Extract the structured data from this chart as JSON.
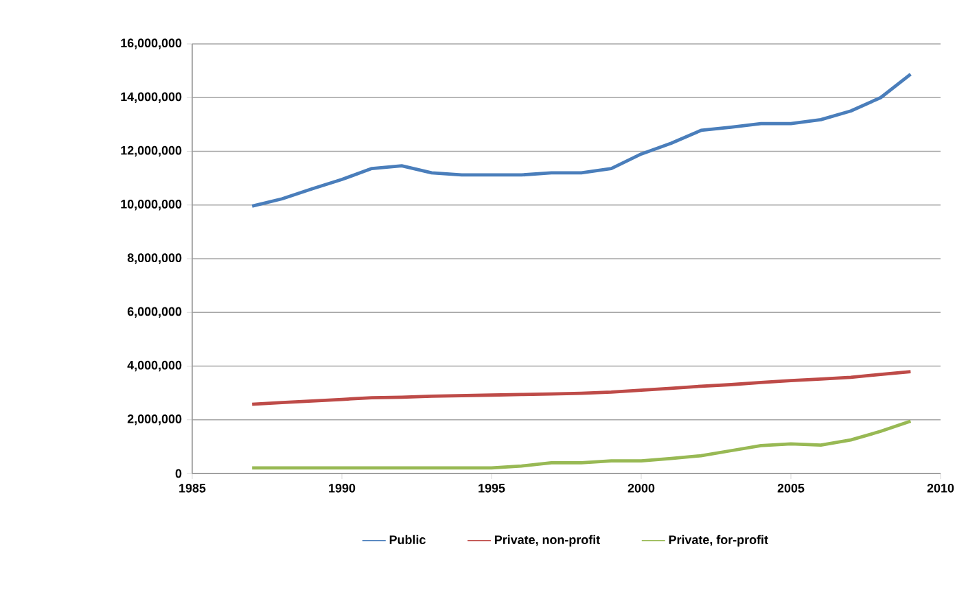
{
  "chart_data": {
    "type": "line",
    "x": [
      1987,
      1988,
      1989,
      1990,
      1991,
      1992,
      1993,
      1994,
      1995,
      1996,
      1997,
      1998,
      1999,
      2000,
      2001,
      2002,
      2003,
      2004,
      2005,
      2006,
      2007,
      2008,
      2009
    ],
    "series": [
      {
        "name": "Public",
        "color": "#4a7ebb",
        "values": [
          9960000,
          10230000,
          10600000,
          10950000,
          11360000,
          11460000,
          11200000,
          11120000,
          11120000,
          11120000,
          11200000,
          11200000,
          11360000,
          11900000,
          12300000,
          12780000,
          12900000,
          13030000,
          13030000,
          13180000,
          13500000,
          14000000,
          14870000
        ]
      },
      {
        "name": "Private, non-profit",
        "color": "#be4b48",
        "values": [
          2580000,
          2640000,
          2700000,
          2760000,
          2820000,
          2840000,
          2880000,
          2900000,
          2920000,
          2940000,
          2960000,
          2990000,
          3030000,
          3100000,
          3170000,
          3250000,
          3310000,
          3390000,
          3460000,
          3520000,
          3580000,
          3690000,
          3790000
        ]
      },
      {
        "name": "Private, for-profit",
        "color": "#98b954",
        "values": [
          210000,
          210000,
          210000,
          210000,
          210000,
          210000,
          210000,
          210000,
          210000,
          280000,
          400000,
          400000,
          470000,
          470000,
          560000,
          660000,
          850000,
          1040000,
          1100000,
          1060000,
          1250000,
          1570000,
          1950000
        ]
      }
    ],
    "xlim": [
      1985,
      2010
    ],
    "xticks": [
      1985,
      1990,
      1995,
      2000,
      2005,
      2010
    ],
    "ylim": [
      0,
      16000000
    ],
    "yticks": [
      {
        "value": 0,
        "label": "0"
      },
      {
        "value": 2000000,
        "label": "2,000,000"
      },
      {
        "value": 4000000,
        "label": "4,000,000"
      },
      {
        "value": 6000000,
        "label": "6,000,000"
      },
      {
        "value": 8000000,
        "label": "8,000,000"
      },
      {
        "value": 10000000,
        "label": "10,000,000"
      },
      {
        "value": 12000000,
        "label": "12,000,000"
      },
      {
        "value": 14000000,
        "label": "14,000,000"
      },
      {
        "value": 16000000,
        "label": "16,000,000"
      }
    ],
    "grid": "y",
    "legend": "bottom",
    "marker": "none",
    "line_style": "solid"
  }
}
